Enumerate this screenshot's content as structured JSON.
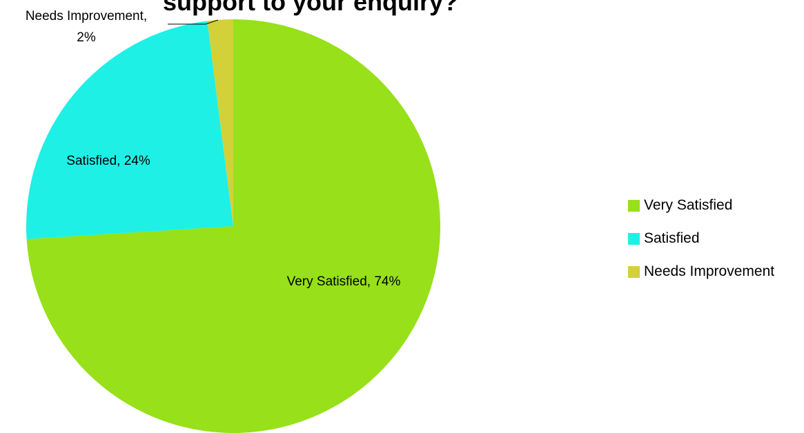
{
  "chart_data": {
    "type": "pie",
    "title": "support to your enquiry?",
    "categories": [
      "Very Satisfied",
      "Satisfied",
      "Needs Improvement"
    ],
    "values": [
      74,
      24,
      2
    ],
    "unit": "%",
    "colors": [
      "#97e01a",
      "#1ef0e6",
      "#d2d13a"
    ],
    "data_labels": [
      "Very Satisfied, 74%",
      "Satisfied, 24%",
      "Needs Improvement,"
    ],
    "data_label_value_lines": [
      "",
      "",
      "2%"
    ],
    "legend": {
      "position": "right",
      "entries": [
        "Very Satisfied",
        "Satisfied",
        "Needs Improvement"
      ]
    }
  }
}
